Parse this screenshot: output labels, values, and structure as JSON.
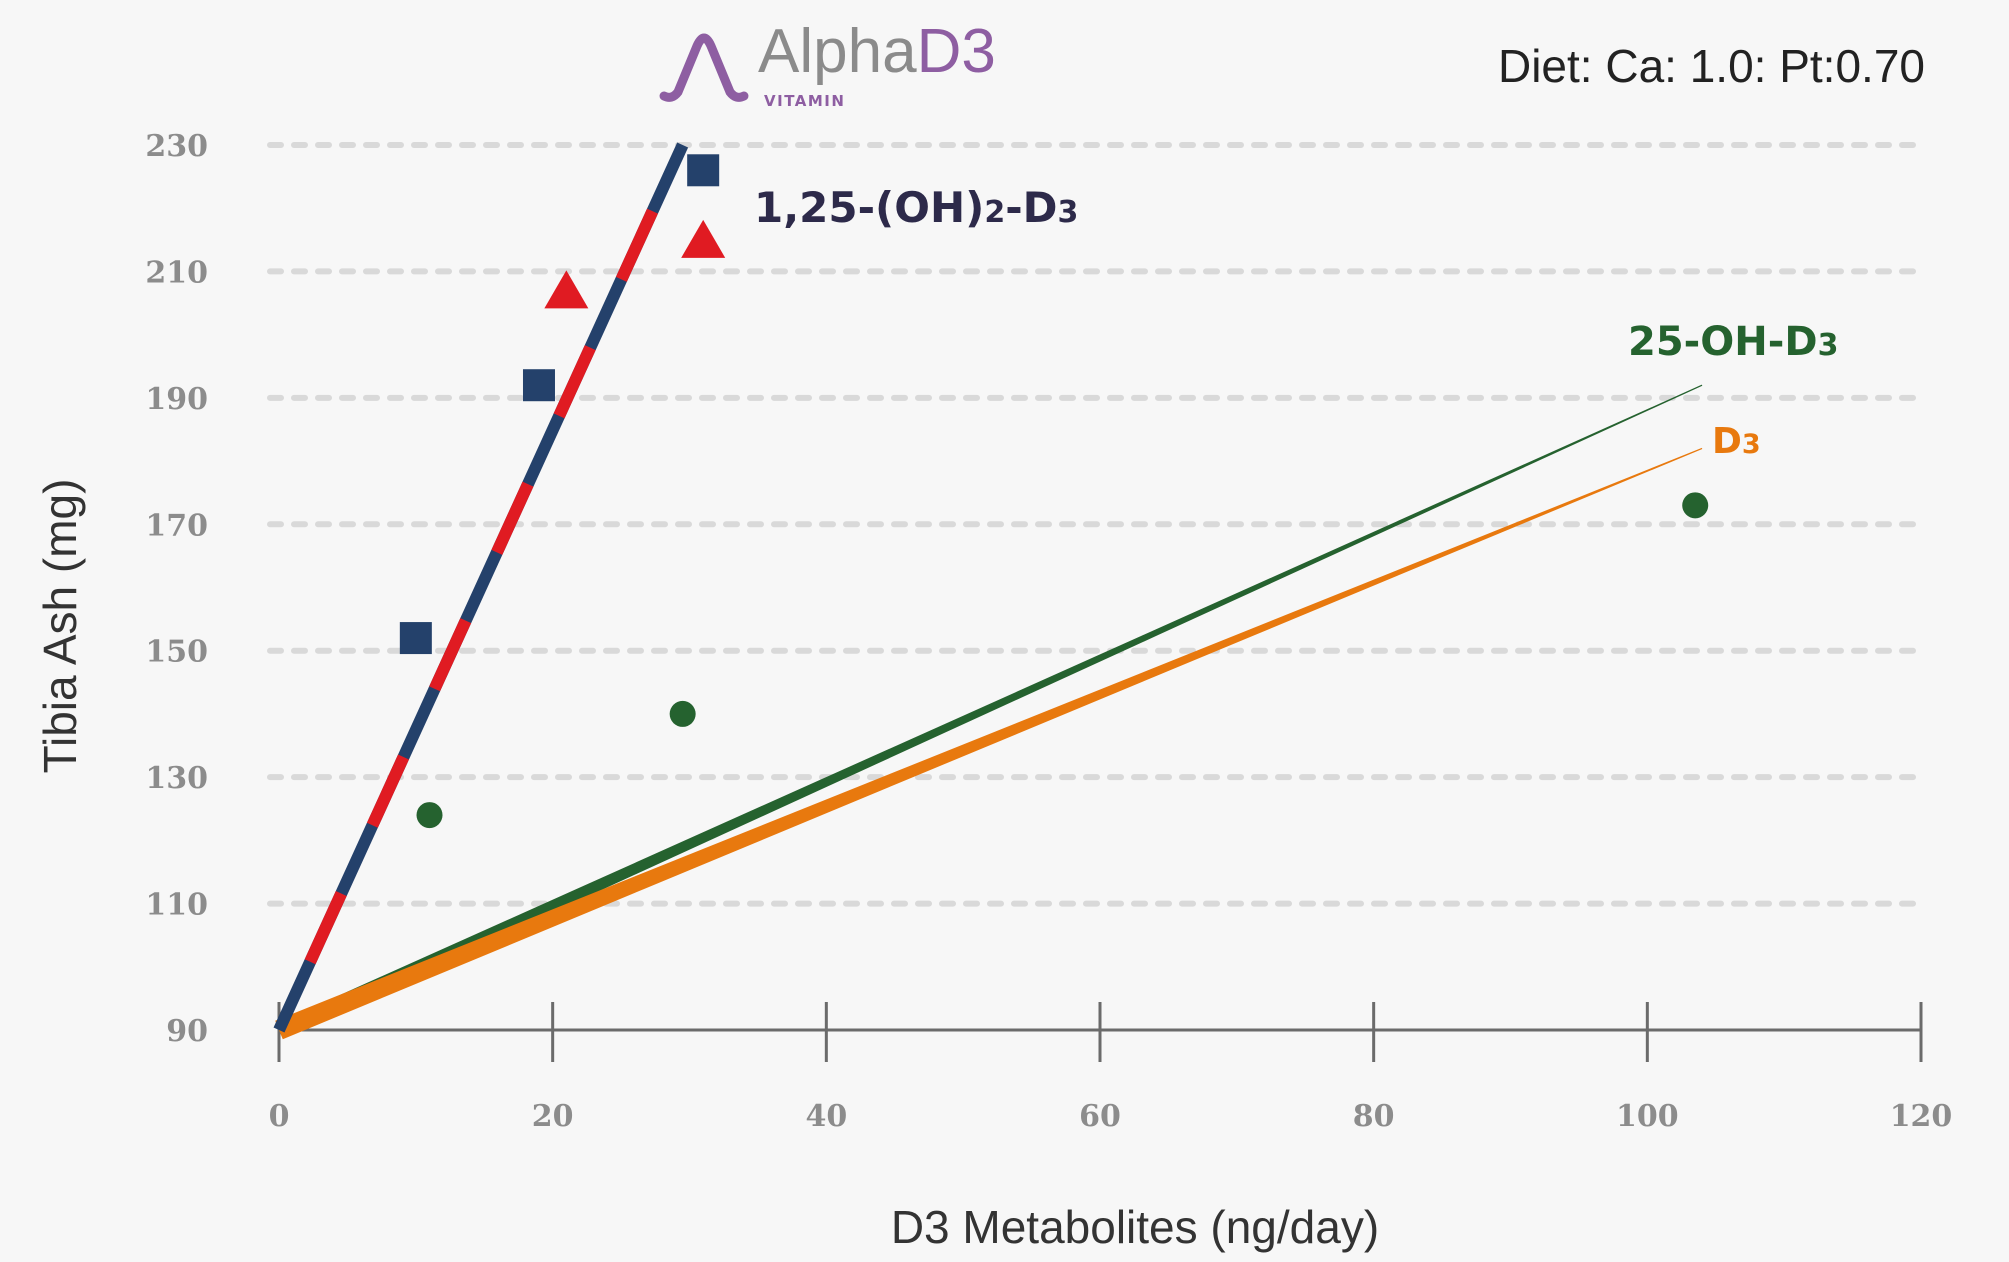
{
  "logo": {
    "text_alpha": "Alpha",
    "text_d3": "D3",
    "sub": "VITAMIN",
    "icon": "alpha-logo-icon",
    "color_gray": "#8b8b8b",
    "color_purple": "#8e5ea2"
  },
  "annotation": "Diet: Ca: 1.0: Pt:0.70",
  "colors": {
    "navy": "#24416b",
    "red": "#e01b22",
    "green": "#25622f",
    "orange": "#e8790e",
    "grid": "#d9d9d9",
    "axis": "#6b6b6b",
    "label_dark": "#2d2a4a"
  },
  "chart_data": {
    "type": "scatter",
    "xlabel": "D3 Metabolites (ng/day)",
    "ylabel": "Tibia Ash (mg)",
    "xlim": [
      0,
      120
    ],
    "ylim": [
      90,
      230
    ],
    "x_ticks": [
      "0",
      "20",
      "40",
      "60",
      "80",
      "100",
      "120"
    ],
    "y_ticks": [
      "90",
      "110",
      "130",
      "150",
      "170",
      "190",
      "210",
      "230"
    ],
    "grid": "horizontal dashed",
    "series": [
      {
        "marker": "square",
        "color": "#24416b",
        "points": [
          [
            10,
            152
          ],
          [
            19,
            192
          ],
          [
            31,
            226
          ]
        ]
      },
      {
        "marker": "triangle",
        "color": "#e01b22",
        "points": [
          [
            21,
            207
          ],
          [
            31,
            215
          ]
        ]
      },
      {
        "marker": "circle",
        "color": "#25622f",
        "points": [
          [
            11,
            124
          ],
          [
            29.5,
            140
          ],
          [
            103.5,
            173
          ]
        ]
      }
    ],
    "trend_lines": [
      {
        "label": "1,25-(OH)2-D3",
        "from": [
          0,
          90
        ],
        "to": [
          29.5,
          230
        ],
        "style": "dashed-navy-red"
      },
      {
        "label": "25-OH-D3",
        "from": [
          0,
          90
        ],
        "to": [
          104,
          192
        ],
        "color": "#25622f"
      },
      {
        "label": "D3",
        "from": [
          0,
          90
        ],
        "to": [
          104,
          182
        ],
        "color": "#e8790e"
      }
    ]
  }
}
